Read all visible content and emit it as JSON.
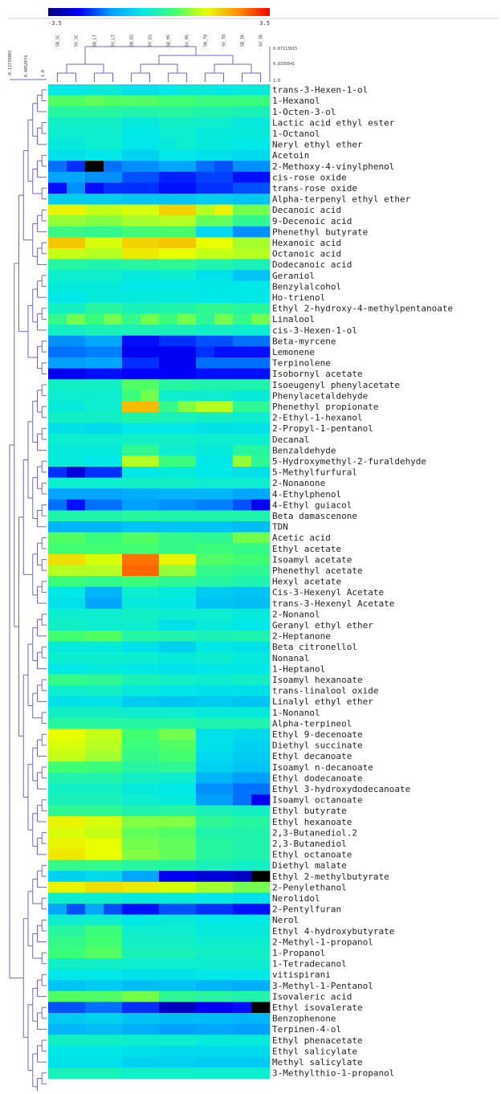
{
  "chart_data": {
    "type": "heatmap",
    "colorbar": {
      "min_label": "-3.5",
      "max_label": "3.5",
      "min": -3.5,
      "max": 3.5,
      "colors": [
        "#00007f",
        "#0000ff",
        "#00a0ff",
        "#00e8e8",
        "#40ff70",
        "#e8ff00",
        "#ff9000",
        "#ff0000"
      ]
    },
    "columns": [
      "SB_SC",
      "SV_SC",
      "SB_LT",
      "SV_LT",
      "SB_EG",
      "SV_EG",
      "SB_MS",
      "SV_MS",
      "SB_TD",
      "SV_TD",
      "SB_IK",
      "SV_IK"
    ],
    "column_tree_scale": [
      "0.67113015",
      "0.8335641",
      "1.0"
    ],
    "row_tree_scale": [
      "-0.13739803",
      "0.4052074",
      "1.0"
    ],
    "rows": [
      "trans-3-Hexen-1-ol",
      "1-Hexanol",
      "1-Octen-3-ol",
      "Lactic acid ethyl ester",
      "1-Octanol",
      "Neryl ethyl ether",
      "Acetoin",
      "2-Methoxy-4-vinylphenol",
      "cis-rose oxide",
      "trans-rose oxide",
      "Alpha-terpenyl ethyl ether",
      "Decanoic acid",
      "9-Decenoic acid",
      "Phenethyl butyrate",
      "Hexanoic acid",
      "Octanoic acid",
      "Dodecanoic acid",
      "Geraniol",
      "Benzylalcohol",
      "Ho-trienol",
      "Ethyl 2-hydroxy-4-methylpentanoate",
      "Linalool",
      "cis-3-Hexen-1-ol",
      "Beta-myrcene",
      "Lemonene",
      "Terpinolene",
      "Isobornyl acetate",
      "Isoeugenyl phenylacetate",
      "Phenylacetaldehyde",
      "Phenethyl propionate",
      "2-Ethyl-1-hexanol",
      "2-Propyl-1-pentanol",
      "Decanal",
      "Benzaldehyde",
      "5-Hydroxymethyl-2-furaldehyde",
      "5-Methylfurfural",
      "2-Nonanone",
      "4-Ethylphenol",
      "4-Ethyl guiacol",
      "Beta damascenone",
      "TDN",
      "Acetic acid",
      "Ethyl acetate",
      "Isoamyl acetate",
      "Phenethyl acetate",
      "Hexyl acetate",
      "Cis-3-Hexenyl Acetate",
      "trans-3-Hexenyl Acetate",
      "2-Nonanol",
      "Geranyl ethyl ether",
      "2-Heptanone",
      "Beta citronellol",
      "Nonanal",
      "1-Heptanol",
      "Isoamyl hexanoate",
      "trans-linalool oxide",
      "Linalyl ethyl ether",
      "1-Nonanol",
      "Alpha-terpineol",
      "Ethyl 9-decenoate",
      "Diethyl succinate",
      "Ethyl decanoate",
      "Isoamyl n-decanoate",
      "Ethyl dodecanoate",
      "Ethyl 3-hydroxydodecanoate",
      "Isoamyl octanoate",
      "Ethyl butyrate",
      "Ethyl hexanoate",
      "2,3-Butanediol.2",
      "2,3-Butanediol",
      "Ethyl octanoate",
      "Diethyl malate",
      "Ethyl 2-methylbutyrate",
      "2-Penylethanol",
      "Nerolidol",
      "2-Pentylfuran",
      "Nerol",
      "Ethyl 4-hydroxybutyrate",
      "2-Methyl-1-propanol",
      "1-Propanol",
      "1-Tetradecanol",
      "vitispirani",
      "3-Methyl-1-Pentanol",
      "Isovaleric acid",
      "Ethyl isovalerate",
      "Benzophenone",
      "Terpinen-4-ol",
      "Ethyl phenacetate",
      "Ethyl salicylate",
      "Methyl salicylate",
      "3-Methylthio-1-propanol"
    ],
    "values": [
      [
        -0.5,
        -0.5,
        -0.4,
        -0.4,
        -0.6,
        -0.6,
        -0.5,
        -0.4,
        -0.4,
        -0.5,
        -0.4,
        -0.4
      ],
      [
        0.6,
        0.6,
        0.7,
        0.6,
        0.6,
        0.6,
        0.5,
        0.5,
        0.4,
        0.4,
        0.4,
        0.4
      ],
      [
        0.1,
        0.1,
        0.1,
        0.1,
        0.0,
        0.0,
        0.1,
        0.1,
        0.0,
        0.0,
        -0.1,
        -0.1
      ],
      [
        -0.2,
        -0.2,
        -0.2,
        -0.2,
        -0.4,
        -0.4,
        -0.2,
        -0.2,
        -0.3,
        -0.3,
        -0.4,
        -0.4
      ],
      [
        -0.3,
        -0.3,
        -0.3,
        -0.3,
        -0.5,
        -0.5,
        -0.3,
        -0.3,
        -0.4,
        -0.4,
        -0.4,
        -0.4
      ],
      [
        -0.4,
        -0.4,
        -0.3,
        -0.3,
        -0.5,
        -0.5,
        -0.4,
        -0.3,
        -0.4,
        -0.4,
        -0.5,
        -0.5
      ],
      [
        -0.6,
        -0.6,
        -0.5,
        -0.5,
        -0.8,
        -0.8,
        -0.5,
        -0.5,
        -0.6,
        -0.6,
        -0.7,
        -0.7
      ],
      [
        -1.8,
        -2.2,
        -3.5,
        -1.8,
        -1.6,
        -1.6,
        -1.4,
        -1.4,
        -1.8,
        -2.0,
        -1.6,
        -1.6
      ],
      [
        -1.4,
        -1.4,
        -1.6,
        -1.6,
        -2.0,
        -2.0,
        -2.3,
        -2.3,
        -2.1,
        -2.1,
        -2.4,
        -2.4
      ],
      [
        -2.4,
        -1.6,
        -2.4,
        -2.2,
        -2.2,
        -2.2,
        -2.4,
        -2.4,
        -2.2,
        -2.2,
        -2.0,
        -2.0
      ],
      [
        -0.9,
        -0.9,
        -0.9,
        -0.9,
        -1.0,
        -1.0,
        -1.0,
        -1.0,
        -0.9,
        -0.9,
        -1.0,
        -1.0
      ],
      [
        1.6,
        1.6,
        1.3,
        1.3,
        1.4,
        1.4,
        1.9,
        1.9,
        1.2,
        1.6,
        0.8,
        0.8
      ],
      [
        1.0,
        1.0,
        0.9,
        0.9,
        1.1,
        1.1,
        1.2,
        1.2,
        0.7,
        0.7,
        0.2,
        0.2
      ],
      [
        0.3,
        0.3,
        0.2,
        0.2,
        0.4,
        0.4,
        0.5,
        0.5,
        -0.7,
        -0.7,
        -1.6,
        -1.6
      ],
      [
        2.0,
        2.0,
        1.4,
        1.4,
        1.9,
        1.9,
        2.0,
        2.0,
        1.5,
        1.5,
        1.1,
        1.1
      ],
      [
        1.3,
        1.3,
        1.2,
        1.2,
        1.7,
        1.7,
        1.5,
        1.5,
        1.3,
        1.3,
        1.2,
        1.2
      ],
      [
        0.1,
        0.1,
        0.0,
        0.0,
        0.1,
        0.1,
        0.2,
        0.2,
        0.0,
        0.0,
        -0.1,
        -0.1
      ],
      [
        -0.3,
        -0.3,
        -0.3,
        -0.3,
        -0.4,
        -0.4,
        -0.3,
        -0.3,
        -0.6,
        -0.6,
        -1.0,
        -1.0
      ],
      [
        -0.4,
        -0.4,
        -0.4,
        -0.4,
        -0.5,
        -0.5,
        -0.5,
        -0.5,
        -0.5,
        -0.5,
        -0.5,
        -0.5
      ],
      [
        -0.5,
        -0.5,
        -0.4,
        -0.4,
        -0.4,
        -0.4,
        -0.4,
        -0.4,
        -0.5,
        -0.5,
        -0.5,
        -0.5
      ],
      [
        -0.2,
        -0.2,
        0.1,
        0.1,
        -0.1,
        -0.1,
        0.0,
        0.0,
        0.2,
        0.2,
        0.1,
        0.1
      ],
      [
        0.3,
        0.8,
        0.4,
        0.8,
        0.3,
        0.8,
        0.4,
        0.8,
        0.2,
        0.8,
        0.3,
        0.8
      ],
      [
        -0.2,
        -0.2,
        -0.1,
        -0.1,
        -0.1,
        -0.1,
        -0.1,
        -0.1,
        -0.2,
        -0.2,
        -0.3,
        -0.3
      ],
      [
        -1.6,
        -1.6,
        -1.4,
        -1.4,
        -2.4,
        -2.4,
        -2.2,
        -2.2,
        -2.0,
        -2.0,
        -1.8,
        -1.8
      ],
      [
        -1.8,
        -1.8,
        -1.7,
        -1.7,
        -2.6,
        -2.6,
        -2.6,
        -2.6,
        -2.2,
        -2.4,
        -2.4,
        -2.4
      ],
      [
        -1.5,
        -1.5,
        -1.4,
        -1.4,
        -2.2,
        -2.2,
        -2.6,
        -2.6,
        -1.8,
        -1.8,
        -1.8,
        -1.8
      ],
      [
        -2.6,
        -2.6,
        -2.4,
        -2.4,
        -2.5,
        -2.5,
        -2.5,
        -2.5,
        -2.4,
        -2.4,
        -2.4,
        -2.4
      ],
      [
        -0.2,
        -0.2,
        -0.2,
        -0.2,
        0.6,
        0.6,
        0.1,
        0.1,
        0.0,
        0.0,
        0.0,
        0.0
      ],
      [
        -0.3,
        -0.3,
        -0.3,
        -0.3,
        0.4,
        0.8,
        -0.3,
        -0.3,
        -0.3,
        -0.3,
        -0.4,
        -0.4
      ],
      [
        -0.4,
        -0.4,
        -0.3,
        -0.3,
        2.1,
        2.1,
        0.3,
        0.9,
        1.2,
        1.2,
        0.2,
        0.2
      ],
      [
        -0.2,
        -0.2,
        -0.2,
        -0.2,
        0.0,
        0.0,
        -0.1,
        -0.1,
        -0.2,
        -0.2,
        -0.3,
        -0.3
      ],
      [
        -0.6,
        -0.6,
        -0.7,
        -0.7,
        -0.5,
        -0.5,
        -0.5,
        -0.5,
        -0.6,
        -0.6,
        -0.6,
        -0.6
      ],
      [
        -0.3,
        -0.3,
        -0.3,
        -0.3,
        -0.2,
        -0.2,
        -0.2,
        -0.2,
        -0.3,
        -0.3,
        -0.3,
        -0.3
      ],
      [
        -0.4,
        -0.4,
        -0.4,
        -0.4,
        0.2,
        0.2,
        -0.3,
        -0.3,
        -0.4,
        -0.4,
        0.1,
        0.1
      ],
      [
        -0.4,
        -0.4,
        -0.5,
        -0.5,
        1.2,
        1.2,
        0.4,
        0.4,
        -0.5,
        -0.5,
        1.0,
        0.2
      ],
      [
        -2.2,
        -2.8,
        -2.2,
        -2.2,
        -0.5,
        -0.5,
        -0.4,
        -0.4,
        -0.5,
        -0.5,
        -0.6,
        -0.6
      ],
      [
        -0.3,
        -0.3,
        -0.3,
        -0.3,
        -0.2,
        -0.2,
        -0.2,
        -0.2,
        -0.3,
        -0.3,
        -0.3,
        -0.3
      ],
      [
        -1.4,
        -1.4,
        -1.4,
        -1.4,
        -1.3,
        -1.3,
        -1.2,
        -1.2,
        -1.2,
        -1.2,
        -1.4,
        -1.4
      ],
      [
        -1.8,
        -2.4,
        -1.8,
        -1.8,
        -1.5,
        -1.5,
        -1.6,
        -1.6,
        -1.7,
        -1.7,
        -2.0,
        -2.6
      ],
      [
        0.0,
        0.0,
        0.0,
        0.0,
        0.1,
        0.1,
        0.0,
        0.0,
        0.0,
        0.0,
        0.0,
        0.0
      ],
      [
        -1.2,
        -1.2,
        -1.2,
        -1.2,
        -1.0,
        -1.0,
        -1.0,
        -1.0,
        -1.0,
        -1.0,
        -1.1,
        -1.1
      ],
      [
        0.6,
        0.6,
        0.4,
        0.4,
        0.6,
        0.6,
        0.3,
        0.3,
        0.2,
        0.2,
        0.8,
        0.8
      ],
      [
        0.5,
        0.5,
        0.5,
        0.5,
        0.5,
        0.5,
        0.3,
        0.3,
        0.4,
        0.4,
        0.3,
        0.3
      ],
      [
        1.8,
        1.8,
        1.4,
        1.4,
        2.7,
        2.7,
        1.6,
        1.6,
        0.6,
        0.6,
        0.5,
        0.5
      ],
      [
        1.2,
        1.2,
        1.2,
        1.2,
        2.8,
        2.8,
        1.0,
        1.0,
        0.3,
        0.3,
        0.2,
        0.2
      ],
      [
        0.4,
        0.4,
        0.3,
        0.3,
        0.4,
        0.4,
        0.2,
        0.2,
        0.1,
        0.1,
        0.0,
        0.0
      ],
      [
        -0.5,
        -0.5,
        -1.2,
        -1.2,
        -0.3,
        -0.3,
        -0.4,
        -0.4,
        -0.9,
        -0.9,
        -1.0,
        -1.0
      ],
      [
        -0.6,
        -0.6,
        -1.4,
        -1.4,
        -0.4,
        -0.4,
        -0.5,
        -0.5,
        -1.0,
        -1.0,
        -1.1,
        -1.1
      ],
      [
        -0.3,
        -0.3,
        -0.3,
        -0.3,
        -0.2,
        -0.2,
        -0.3,
        -0.3,
        -0.3,
        -0.3,
        -0.4,
        -0.4
      ],
      [
        -0.2,
        -0.2,
        -0.3,
        -0.3,
        -0.3,
        -0.3,
        -0.6,
        -0.6,
        -0.4,
        -0.4,
        -0.5,
        -0.5
      ],
      [
        0.5,
        0.5,
        0.6,
        0.6,
        0.1,
        0.1,
        0.0,
        0.0,
        -0.1,
        -0.1,
        0.0,
        0.0
      ],
      [
        -0.4,
        -0.4,
        -0.4,
        -0.4,
        -0.6,
        -0.6,
        -0.8,
        -0.8,
        -0.5,
        -0.5,
        -0.6,
        -0.6
      ],
      [
        -0.3,
        -0.3,
        -0.3,
        -0.3,
        -0.3,
        -0.3,
        -0.4,
        -0.4,
        -0.3,
        -0.3,
        -0.4,
        -0.4
      ],
      [
        -0.5,
        -0.5,
        -0.4,
        -0.4,
        -0.5,
        -0.5,
        -0.6,
        -0.6,
        -0.5,
        -0.5,
        -0.5,
        -0.5
      ],
      [
        0.3,
        0.3,
        0.2,
        0.2,
        -0.1,
        -0.1,
        -0.2,
        -0.2,
        -0.3,
        -0.3,
        -0.2,
        -0.2
      ],
      [
        -0.3,
        -0.3,
        -0.2,
        -0.2,
        -0.4,
        -0.4,
        -0.5,
        -0.5,
        -0.6,
        -0.6,
        -0.6,
        -0.6
      ],
      [
        -0.6,
        -0.6,
        -0.6,
        -0.6,
        -0.9,
        -0.9,
        -1.0,
        -1.0,
        -0.9,
        -0.9,
        -1.0,
        -1.0
      ],
      [
        -0.2,
        -0.2,
        -0.2,
        -0.2,
        -0.3,
        -0.3,
        -0.3,
        -0.3,
        -0.4,
        -0.4,
        -0.4,
        -0.4
      ],
      [
        0.1,
        0.1,
        0.1,
        0.1,
        0.1,
        0.1,
        0.1,
        0.1,
        0.0,
        0.0,
        0.0,
        0.0
      ],
      [
        1.5,
        1.5,
        1.3,
        1.3,
        0.5,
        0.5,
        0.8,
        0.8,
        -0.6,
        -0.6,
        -0.7,
        -0.7
      ],
      [
        1.4,
        1.4,
        1.2,
        1.2,
        0.4,
        0.4,
        0.6,
        0.6,
        -0.6,
        -0.6,
        -0.8,
        -0.8
      ],
      [
        1.3,
        1.3,
        1.1,
        1.1,
        0.3,
        0.3,
        0.5,
        0.5,
        -0.7,
        -0.7,
        -0.9,
        -0.9
      ],
      [
        0.5,
        0.5,
        0.4,
        0.4,
        0.1,
        0.1,
        0.2,
        0.2,
        -0.8,
        -0.8,
        -1.0,
        -1.0
      ],
      [
        0.0,
        0.0,
        0.0,
        0.0,
        -0.2,
        -0.2,
        -0.3,
        -0.3,
        -1.2,
        -1.2,
        -1.5,
        -1.5
      ],
      [
        -0.2,
        -0.2,
        -0.2,
        -0.2,
        -0.4,
        -0.4,
        -0.5,
        -0.5,
        -1.6,
        -1.6,
        -1.8,
        -1.8
      ],
      [
        -0.1,
        -0.1,
        -0.1,
        -0.1,
        -0.3,
        -0.3,
        -0.4,
        -0.4,
        -1.5,
        -1.5,
        -1.8,
        -2.6
      ],
      [
        0.2,
        0.2,
        0.2,
        0.2,
        0.0,
        0.0,
        0.1,
        0.1,
        -0.1,
        -0.1,
        -0.2,
        -0.2
      ],
      [
        1.6,
        1.6,
        1.4,
        1.4,
        0.9,
        0.9,
        0.9,
        0.9,
        0.2,
        0.2,
        0.1,
        0.1
      ],
      [
        1.4,
        1.4,
        1.3,
        1.3,
        0.7,
        0.7,
        0.6,
        0.6,
        0.0,
        0.0,
        0.0,
        0.0
      ],
      [
        1.6,
        1.6,
        1.5,
        1.5,
        0.8,
        0.8,
        0.7,
        0.7,
        0.1,
        0.1,
        0.0,
        0.0
      ],
      [
        1.7,
        1.7,
        1.5,
        1.5,
        0.9,
        0.9,
        0.7,
        0.7,
        0.1,
        0.1,
        0.0,
        0.0
      ],
      [
        0.3,
        0.3,
        0.3,
        0.3,
        0.1,
        0.1,
        0.1,
        0.1,
        -0.1,
        -0.1,
        -0.2,
        -0.2
      ],
      [
        -0.8,
        -0.8,
        -0.7,
        -0.7,
        -1.4,
        -1.4,
        -2.6,
        -2.6,
        -2.8,
        -2.8,
        -3.0,
        -3.5
      ],
      [
        1.6,
        1.6,
        1.8,
        1.8,
        1.7,
        1.7,
        1.4,
        1.4,
        1.1,
        1.1,
        0.8,
        0.8
      ],
      [
        -0.3,
        -0.3,
        -0.3,
        -0.3,
        -0.4,
        -0.4,
        -0.4,
        -0.4,
        -0.5,
        -0.5,
        -0.6,
        -0.6
      ],
      [
        -1.4,
        -2.0,
        -1.4,
        -2.0,
        -2.4,
        -2.4,
        -2.0,
        -2.0,
        -2.2,
        -2.2,
        -2.4,
        -2.4
      ],
      [
        -0.3,
        -0.3,
        -0.3,
        -0.3,
        -0.5,
        -0.5,
        -0.4,
        -0.4,
        -0.5,
        -0.5,
        -0.5,
        -0.5
      ],
      [
        0.1,
        0.1,
        0.4,
        0.4,
        -0.3,
        -0.3,
        -0.3,
        -0.3,
        -0.4,
        -0.4,
        -0.4,
        -0.4
      ],
      [
        0.3,
        0.3,
        0.5,
        0.5,
        -0.2,
        -0.2,
        -0.2,
        -0.2,
        -0.3,
        -0.3,
        -0.3,
        -0.3
      ],
      [
        0.4,
        0.4,
        0.6,
        0.6,
        -0.1,
        -0.1,
        -0.1,
        -0.1,
        -0.2,
        -0.2,
        -0.2,
        -0.2
      ],
      [
        -0.2,
        -0.2,
        -0.2,
        -0.2,
        -0.3,
        -0.3,
        -0.3,
        -0.3,
        -0.3,
        -0.3,
        -0.3,
        -0.3
      ],
      [
        -0.5,
        -0.5,
        -0.5,
        -0.5,
        -0.6,
        -0.6,
        -0.6,
        -0.6,
        -0.5,
        -0.5,
        -0.5,
        -0.5
      ],
      [
        -1.0,
        -1.0,
        -0.9,
        -0.9,
        -1.1,
        -1.1,
        -1.0,
        -1.0,
        -1.2,
        -1.2,
        -1.3,
        -1.3
      ],
      [
        0.6,
        0.6,
        0.6,
        0.6,
        0.8,
        0.8,
        0.2,
        0.2,
        0.1,
        0.1,
        0.0,
        0.0
      ],
      [
        -2.0,
        -2.0,
        -1.8,
        -1.8,
        -2.2,
        -2.2,
        -3.0,
        -3.0,
        -2.6,
        -2.6,
        -2.4,
        -3.5
      ],
      [
        -0.9,
        -0.9,
        -0.8,
        -0.8,
        -1.0,
        -1.0,
        -1.1,
        -1.1,
        -1.1,
        -1.1,
        -1.2,
        -1.2
      ],
      [
        -1.2,
        -1.2,
        -1.1,
        -1.1,
        -1.3,
        -1.3,
        -1.5,
        -1.5,
        -1.4,
        -1.4,
        -1.5,
        -1.5
      ],
      [
        -0.2,
        -0.2,
        -0.2,
        -0.2,
        -0.3,
        -0.3,
        -0.3,
        -0.3,
        -0.4,
        -0.4,
        -0.4,
        -0.4
      ],
      [
        -0.5,
        -0.5,
        -0.5,
        -0.5,
        -0.6,
        -0.6,
        -0.7,
        -0.7,
        -0.7,
        -0.7,
        -0.7,
        -0.7
      ],
      [
        -0.6,
        -0.6,
        -0.6,
        -0.6,
        -0.8,
        -0.8,
        -0.8,
        -0.8,
        -0.9,
        -0.9,
        -0.9,
        -0.9
      ],
      [
        -0.1,
        -0.1,
        -0.1,
        -0.1,
        -0.2,
        -0.2,
        -0.2,
        -0.2,
        -0.3,
        -0.3,
        -0.3,
        -0.3
      ]
    ]
  }
}
